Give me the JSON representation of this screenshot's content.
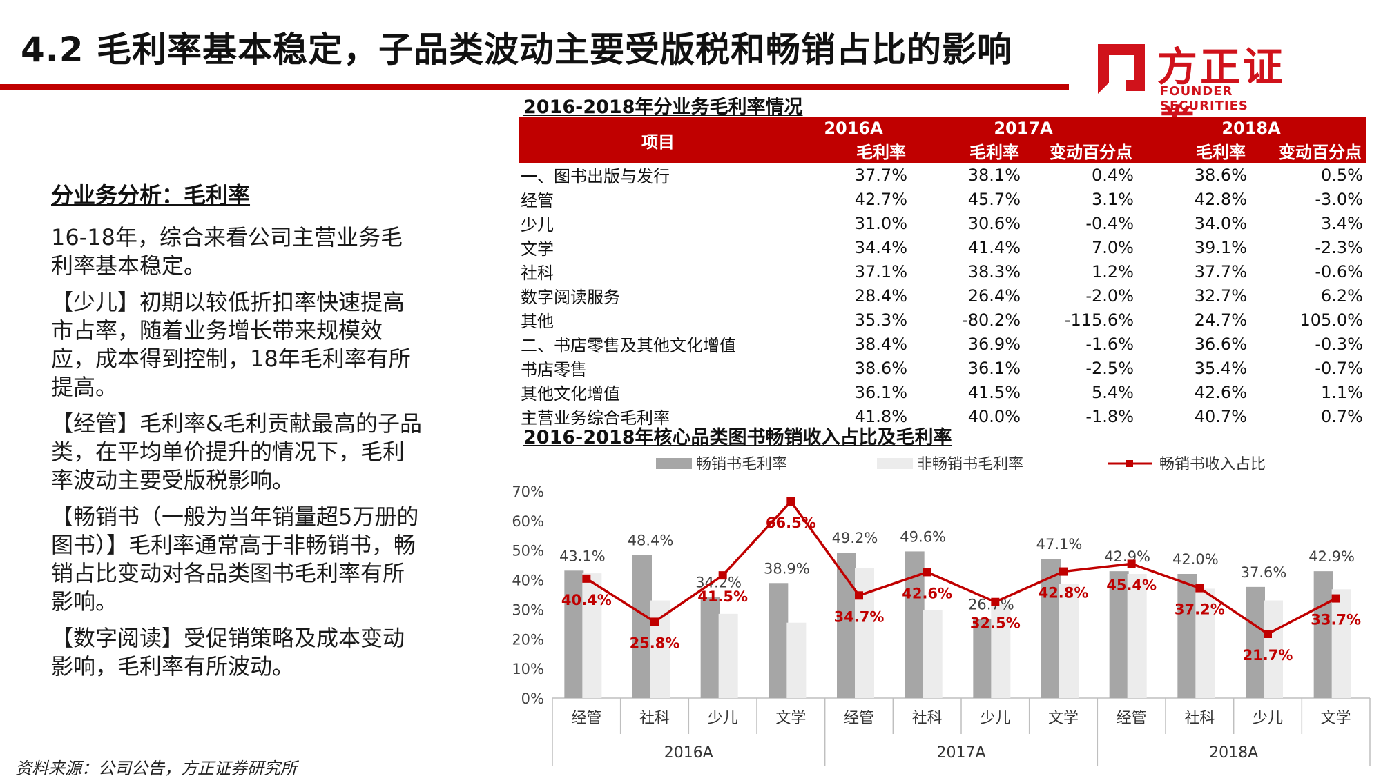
{
  "header": {
    "title": "4.2 毛利率基本稳定，子品类波动主要受版税和畅销占比的影响",
    "logo_cn": "方正证券",
    "logo_en": "FOUNDER SECURITIES",
    "accent_color": "#c00000"
  },
  "left": {
    "heading": "分业务分析：毛利率",
    "paragraphs": [
      "16-18年，综合来看公司主营业务毛利率基本稳定。",
      "【少儿】初期以较低折扣率快速提高市占率，随着业务增长带来规模效应，成本得到控制，18年毛利率有所提高。",
      "【经管】毛利率&毛利贡献最高的子品类，在平均单价提升的情况下，毛利率波动主要受版税影响。",
      "【畅销书（一般为当年销量超5万册的图书）】毛利率通常高于非畅销书，畅销占比变动对各品类图书毛利率有所影响。",
      "【数字阅读】受促销策略及成本变动影响，毛利率有所波动。"
    ]
  },
  "table": {
    "title": "2016-2018年分业务毛利率情况",
    "item_header": "项目",
    "years": [
      "2016A",
      "2017A",
      "2018A"
    ],
    "sub_headers": [
      "毛利率",
      "毛利率",
      "变动百分点",
      "毛利率",
      "变动百分点"
    ],
    "rows": [
      [
        "一、图书出版与发行",
        "37.7%",
        "38.1%",
        "0.4%",
        "38.6%",
        "0.5%"
      ],
      [
        "经管",
        "42.7%",
        "45.7%",
        "3.1%",
        "42.8%",
        "-3.0%"
      ],
      [
        "少儿",
        "31.0%",
        "30.6%",
        "-0.4%",
        "34.0%",
        "3.4%"
      ],
      [
        "文学",
        "34.4%",
        "41.4%",
        "7.0%",
        "39.1%",
        "-2.3%"
      ],
      [
        "社科",
        "37.1%",
        "38.3%",
        "1.2%",
        "37.7%",
        "-0.6%"
      ],
      [
        "数字阅读服务",
        "28.4%",
        "26.4%",
        "-2.0%",
        "32.7%",
        "6.2%"
      ],
      [
        "其他",
        "35.3%",
        "-80.2%",
        "-115.6%",
        "24.7%",
        "105.0%"
      ],
      [
        "二、书店零售及其他文化增值",
        "38.4%",
        "36.9%",
        "-1.6%",
        "36.6%",
        "-0.3%"
      ],
      [
        "书店零售",
        "38.6%",
        "36.1%",
        "-2.5%",
        "35.4%",
        "-0.7%"
      ],
      [
        "其他文化增值",
        "36.1%",
        "41.5%",
        "5.4%",
        "42.6%",
        "1.1%"
      ],
      [
        "主营业务综合毛利率",
        "41.8%",
        "40.0%",
        "-1.8%",
        "40.7%",
        "0.7%"
      ]
    ]
  },
  "chart_title": "2016-2018年核心品类图书畅销收入占比及毛利率",
  "chart_data": {
    "type": "bar",
    "groups": [
      "2016A",
      "2017A",
      "2018A"
    ],
    "categories": [
      "经管",
      "社科",
      "少儿",
      "文学",
      "经管",
      "社科",
      "少儿",
      "文学",
      "经管",
      "社科",
      "少儿",
      "文学"
    ],
    "ylim": [
      0,
      70
    ],
    "yticks": [
      "0%",
      "10%",
      "20%",
      "30%",
      "40%",
      "50%",
      "60%",
      "70%"
    ],
    "series": [
      {
        "name": "畅销书毛利率",
        "kind": "bar",
        "color": "#a6a6a6",
        "values": [
          43.1,
          48.4,
          34.2,
          38.9,
          49.2,
          49.6,
          26.7,
          47.1,
          42.9,
          42.0,
          37.6,
          42.9
        ],
        "labels": [
          "43.1%",
          "48.4%",
          "34.2%",
          "38.9%",
          "49.2%",
          "49.6%",
          "26.7%",
          "47.1%",
          "42.9%",
          "42.0%",
          "37.6%",
          "42.9%"
        ]
      },
      {
        "name": "非畅销书毛利率",
        "kind": "bar",
        "color": "#ececec",
        "values": [
          42.2,
          33.0,
          28.5,
          25.5,
          44.0,
          29.8,
          32.0,
          38.5,
          42.0,
          37.0,
          33.0,
          36.8
        ]
      },
      {
        "name": "畅销书收入占比",
        "kind": "line",
        "color": "#c00000",
        "values": [
          40.4,
          25.8,
          41.5,
          66.5,
          34.7,
          42.6,
          32.5,
          42.8,
          45.4,
          37.2,
          21.7,
          33.7
        ],
        "labels": [
          "40.4%",
          "25.8%",
          "41.5%",
          "66.5%",
          "34.7%",
          "42.6%",
          "32.5%",
          "42.8%",
          "45.4%",
          "37.2%",
          "21.7%",
          "33.7%"
        ]
      }
    ],
    "legend_position": "top",
    "grid": false
  },
  "footer": {
    "source": "资料来源：公司公告，方正证券研究所"
  }
}
